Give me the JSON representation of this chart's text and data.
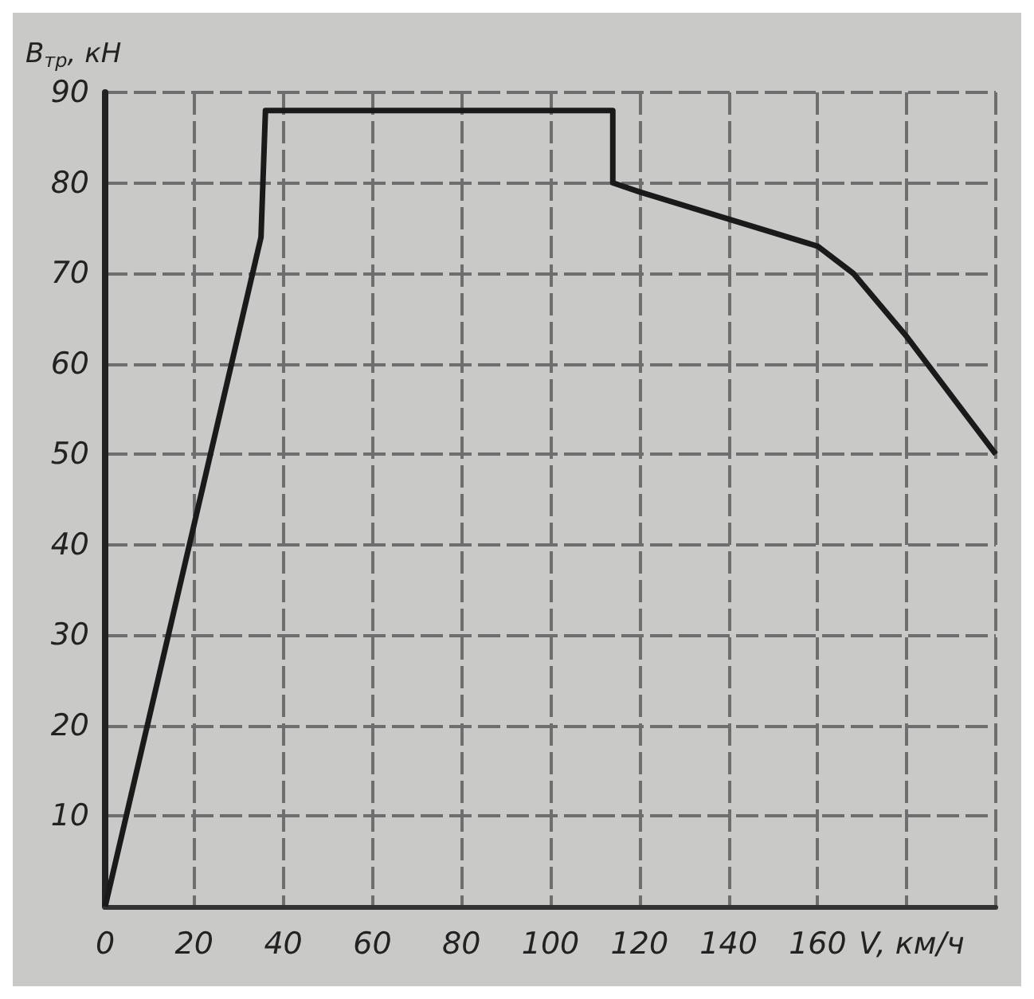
{
  "chart_data": {
    "type": "line",
    "xlabel": "V, км/ч",
    "ylabel": "B$_{тр}$, кН",
    "x": [
      0,
      35,
      36,
      114,
      114,
      120,
      160,
      168,
      180,
      200
    ],
    "series": [
      {
        "color": "#1a1a1a",
        "values": [
          0,
          74,
          88,
          88,
          80,
          79,
          73,
          70,
          63,
          50
        ]
      }
    ],
    "xlim": [
      0,
      200
    ],
    "xticks": [
      0,
      20,
      40,
      60,
      80,
      100,
      120,
      140,
      160,
      {
        "value": 180,
        "label": null
      },
      {
        "value": 200,
        "label": null
      }
    ],
    "ylim": [
      0,
      90
    ],
    "yticks": [
      {
        "value": 0,
        "label": null
      },
      10,
      20,
      30,
      40,
      50,
      60,
      70,
      80,
      90
    ],
    "grid": true,
    "marker": "none",
    "line_style": "solid"
  }
}
